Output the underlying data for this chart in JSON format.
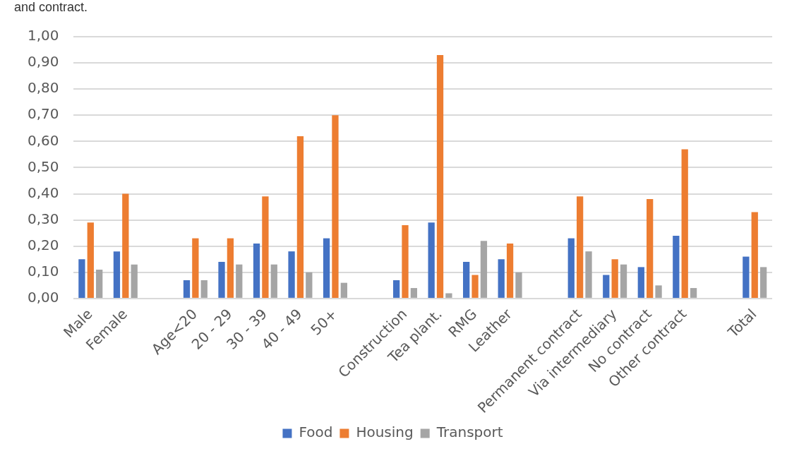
{
  "chart_data": {
    "type": "bar",
    "title": "and contract.",
    "categories": [
      "Male",
      "Female",
      null,
      "Age<20",
      "20 - 29",
      "30 - 39",
      "40 - 49",
      "50+",
      null,
      "Construction",
      "Tea plant.",
      "RMG",
      "Leather",
      null,
      "Permanent contract",
      "Via intermediary",
      "No contract",
      "Other contract",
      null,
      "Total"
    ],
    "series": [
      {
        "name": "Food",
        "color": "#4472c4",
        "values": [
          0.15,
          0.18,
          null,
          0.07,
          0.14,
          0.21,
          0.18,
          0.23,
          null,
          0.07,
          0.29,
          0.14,
          0.15,
          null,
          0.23,
          0.09,
          0.12,
          0.24,
          null,
          0.16
        ]
      },
      {
        "name": "Housing",
        "color": "#ed7d31",
        "values": [
          0.29,
          0.4,
          null,
          0.23,
          0.23,
          0.39,
          0.62,
          0.7,
          null,
          0.28,
          0.93,
          0.09,
          0.21,
          null,
          0.39,
          0.15,
          0.38,
          0.57,
          null,
          0.33
        ]
      },
      {
        "name": "Transport",
        "color": "#a5a5a5",
        "values": [
          0.11,
          0.13,
          null,
          0.07,
          0.13,
          0.13,
          0.1,
          0.06,
          null,
          0.04,
          0.02,
          0.22,
          0.1,
          null,
          0.18,
          0.13,
          0.05,
          0.04,
          null,
          0.12
        ]
      }
    ],
    "ylim": [
      0,
      1
    ],
    "yticks": [
      {
        "value": 0,
        "label": "0,00"
      },
      {
        "value": 0.1,
        "label": "0,10"
      },
      {
        "value": 0.2,
        "label": "0,20"
      },
      {
        "value": 0.3,
        "label": "0,30"
      },
      {
        "value": 0.4,
        "label": "0,40"
      },
      {
        "value": 0.5,
        "label": "0,50"
      },
      {
        "value": 0.6,
        "label": "0,60"
      },
      {
        "value": 0.7,
        "label": "0,70"
      },
      {
        "value": 0.8,
        "label": "0,80"
      },
      {
        "value": 0.9,
        "label": "0,90"
      },
      {
        "value": 1,
        "label": "1,00"
      }
    ],
    "grid": "y",
    "legend": "bottom"
  }
}
